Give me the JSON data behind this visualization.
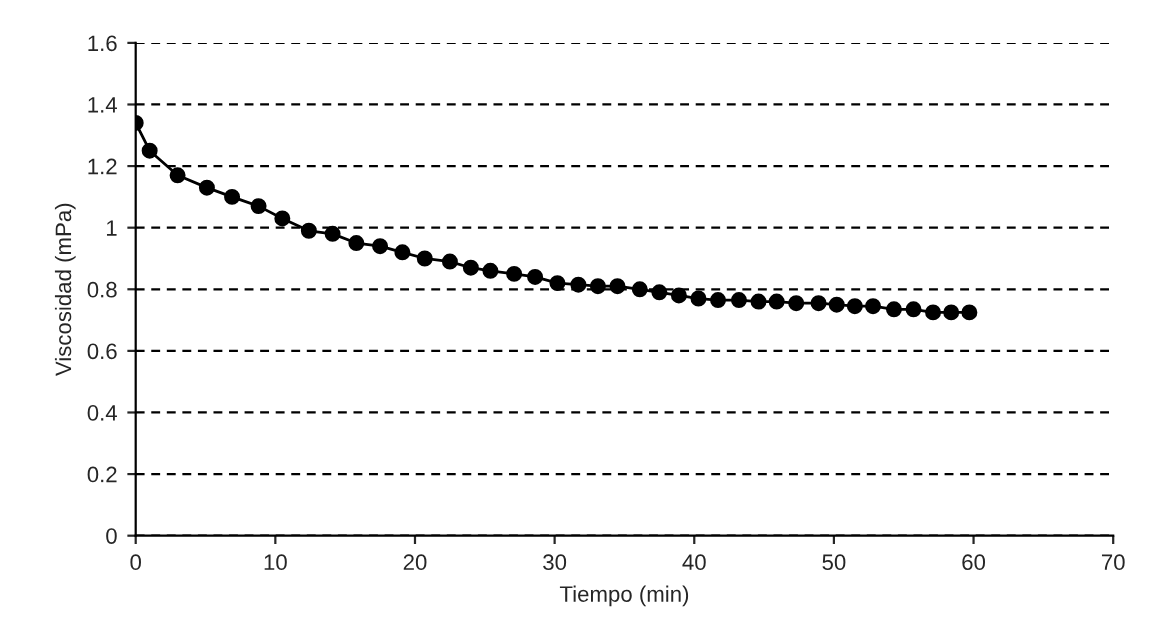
{
  "chart_data": {
    "type": "line",
    "xlabel": "Tiempo (min)",
    "ylabel": "Viscosidad (mPa)",
    "xlim": [
      0,
      70
    ],
    "xticks": [
      0,
      10,
      20,
      30,
      40,
      50,
      60,
      70
    ],
    "ylim": [
      0,
      1.6
    ],
    "yticks": [
      0,
      0.2,
      0.4,
      0.6,
      0.8,
      1,
      1.2,
      1.4,
      1.6
    ],
    "grid": "y",
    "marker": "circle",
    "line_style": "solid",
    "series": [
      {
        "color": "#000000",
        "x": [
          0,
          1,
          3,
          5.1,
          6.9,
          8.8,
          10.5,
          12.4,
          14.1,
          15.8,
          17.5,
          19.1,
          20.7,
          22.5,
          24,
          25.4,
          27.1,
          28.6,
          30.2,
          31.7,
          33.1,
          34.5,
          36.1,
          37.5,
          38.9,
          40.3,
          41.7,
          43.2,
          44.6,
          45.9,
          47.3,
          48.9,
          50.2,
          51.5,
          52.8,
          54.3,
          55.7,
          57.1,
          58.4,
          59.7
        ],
        "values": [
          1.34,
          1.25,
          1.17,
          1.13,
          1.1,
          1.07,
          1.03,
          0.99,
          0.98,
          0.95,
          0.94,
          0.92,
          0.9,
          0.89,
          0.87,
          0.86,
          0.85,
          0.84,
          0.82,
          0.815,
          0.81,
          0.81,
          0.8,
          0.79,
          0.78,
          0.77,
          0.765,
          0.765,
          0.76,
          0.76,
          0.755,
          0.755,
          0.75,
          0.745,
          0.745,
          0.735,
          0.735,
          0.725,
          0.725,
          0.725
        ]
      }
    ]
  }
}
